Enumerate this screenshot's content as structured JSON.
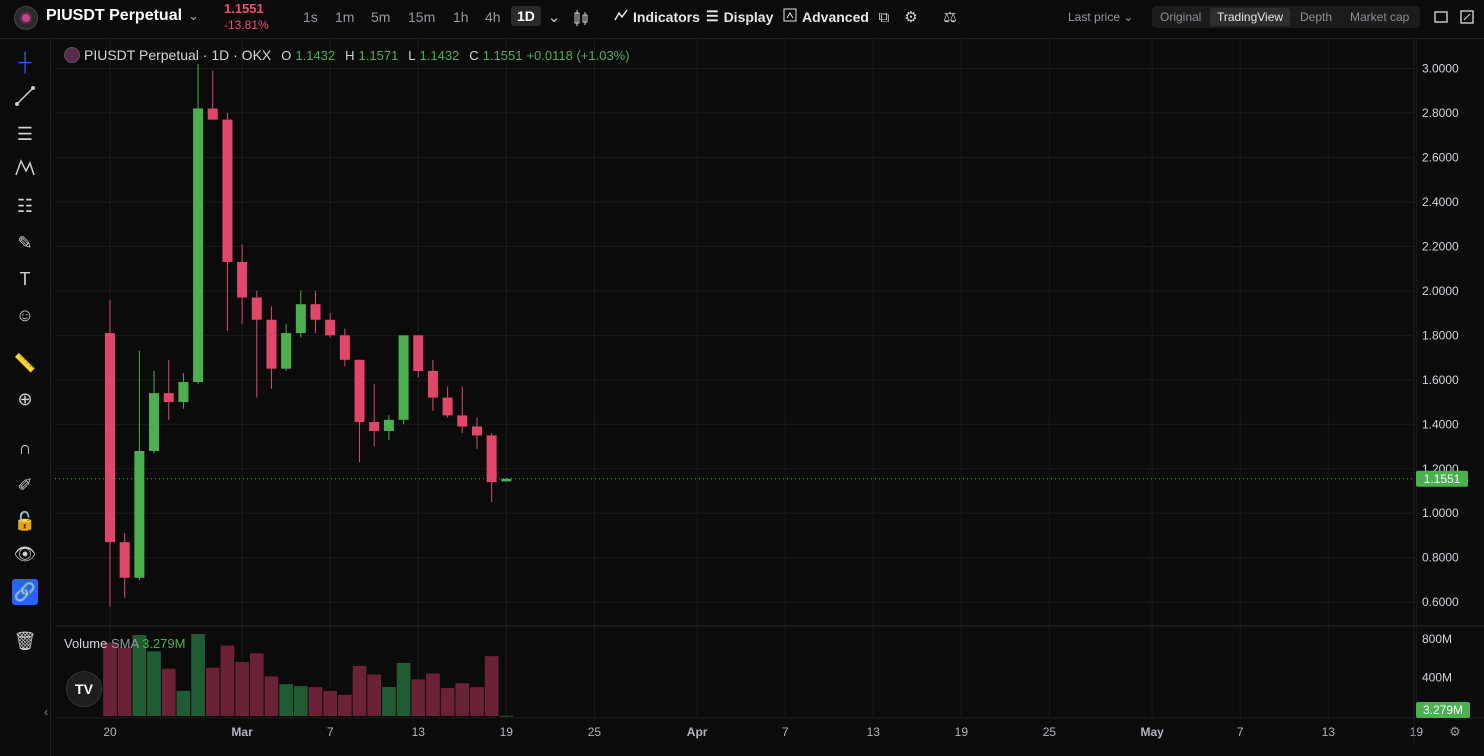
{
  "header": {
    "symbol": "PIUSDT Perpetual",
    "price": "1.1551",
    "change": "-13.81%",
    "timeframes": [
      "1s",
      "1m",
      "5m",
      "15m",
      "1h",
      "4h",
      "1D"
    ],
    "active_timeframe": "1D",
    "indicators_label": "Indicators",
    "display_label": "Display",
    "advanced_label": "Advanced",
    "last_price_label": "Last price",
    "views": [
      "Original",
      "TradingView",
      "Depth",
      "Market cap"
    ],
    "active_view": "TradingView"
  },
  "legend": {
    "title": "PIUSDT Perpetual · 1D · OKX",
    "o_label": "O",
    "o": "1.1432",
    "h_label": "H",
    "h": "1.1571",
    "l_label": "L",
    "l": "1.1432",
    "c_label": "C",
    "c": "1.1551",
    "change": "+0.0118 (+1.03%)"
  },
  "volume_legend": {
    "label": "Volume",
    "sma_label": "SMA",
    "value": "3.279M"
  },
  "colors": {
    "up": "#4caf50",
    "down": "#e0476a",
    "up_vol": "#1f5c33",
    "down_vol": "#6b2236",
    "grid": "#1a1a1a"
  },
  "chart_data": {
    "type": "candlestick",
    "y_axis_ticks": [
      "3.0000",
      "2.8000",
      "2.6000",
      "2.4000",
      "2.2000",
      "2.0000",
      "1.8000",
      "1.6000",
      "1.4000",
      "1.2000",
      "1.0000",
      "0.8000",
      "0.6000"
    ],
    "y_range": [
      0.52,
      3.02
    ],
    "last_price_label": "1.1551",
    "last_price": 1.1551,
    "volume_axis_ticks": [
      "800M",
      "400M"
    ],
    "volume_range": [
      0,
      850
    ],
    "volume_last_label": "3.279M",
    "x_axis_labels": [
      "20",
      "Mar",
      "7",
      "13",
      "19",
      "25",
      "Apr",
      "7",
      "13",
      "19",
      "25",
      "May",
      "7",
      "13",
      "19"
    ],
    "candles": [
      {
        "o": 1.81,
        "h": 1.96,
        "l": 0.58,
        "c": 0.87,
        "v": 760
      },
      {
        "o": 0.87,
        "h": 0.91,
        "l": 0.62,
        "c": 0.71,
        "v": 710
      },
      {
        "o": 0.71,
        "h": 1.73,
        "l": 0.7,
        "c": 1.28,
        "v": 840
      },
      {
        "o": 1.28,
        "h": 1.64,
        "l": 1.27,
        "c": 1.54,
        "v": 670
      },
      {
        "o": 1.54,
        "h": 1.69,
        "l": 1.42,
        "c": 1.5,
        "v": 490
      },
      {
        "o": 1.5,
        "h": 1.63,
        "l": 1.47,
        "c": 1.59,
        "v": 260
      },
      {
        "o": 1.59,
        "h": 3.02,
        "l": 1.58,
        "c": 2.82,
        "v": 850
      },
      {
        "o": 2.82,
        "h": 2.99,
        "l": 2.77,
        "c": 2.77,
        "v": 500
      },
      {
        "o": 2.77,
        "h": 2.8,
        "l": 1.82,
        "c": 2.13,
        "v": 730
      },
      {
        "o": 2.13,
        "h": 2.21,
        "l": 1.85,
        "c": 1.97,
        "v": 560
      },
      {
        "o": 1.97,
        "h": 2.0,
        "l": 1.52,
        "c": 1.87,
        "v": 650
      },
      {
        "o": 1.87,
        "h": 1.93,
        "l": 1.56,
        "c": 1.65,
        "v": 410
      },
      {
        "o": 1.65,
        "h": 1.85,
        "l": 1.64,
        "c": 1.81,
        "v": 330
      },
      {
        "o": 1.81,
        "h": 2.0,
        "l": 1.79,
        "c": 1.94,
        "v": 310
      },
      {
        "o": 1.94,
        "h": 2.0,
        "l": 1.81,
        "c": 1.87,
        "v": 300
      },
      {
        "o": 1.87,
        "h": 1.9,
        "l": 1.79,
        "c": 1.8,
        "v": 260
      },
      {
        "o": 1.8,
        "h": 1.83,
        "l": 1.66,
        "c": 1.69,
        "v": 220
      },
      {
        "o": 1.69,
        "h": 1.69,
        "l": 1.23,
        "c": 1.41,
        "v": 520
      },
      {
        "o": 1.41,
        "h": 1.58,
        "l": 1.3,
        "c": 1.37,
        "v": 430
      },
      {
        "o": 1.37,
        "h": 1.44,
        "l": 1.33,
        "c": 1.42,
        "v": 300
      },
      {
        "o": 1.42,
        "h": 1.8,
        "l": 1.4,
        "c": 1.8,
        "v": 550
      },
      {
        "o": 1.8,
        "h": 1.8,
        "l": 1.61,
        "c": 1.64,
        "v": 380
      },
      {
        "o": 1.64,
        "h": 1.69,
        "l": 1.46,
        "c": 1.52,
        "v": 440
      },
      {
        "o": 1.52,
        "h": 1.57,
        "l": 1.43,
        "c": 1.44,
        "v": 290
      },
      {
        "o": 1.44,
        "h": 1.57,
        "l": 1.36,
        "c": 1.39,
        "v": 340
      },
      {
        "o": 1.39,
        "h": 1.43,
        "l": 1.29,
        "c": 1.35,
        "v": 300
      },
      {
        "o": 1.35,
        "h": 1.36,
        "l": 1.05,
        "c": 1.14,
        "v": 620
      },
      {
        "o": 1.1432,
        "h": 1.1571,
        "l": 1.1432,
        "c": 1.1551,
        "v": 3.279
      }
    ]
  }
}
